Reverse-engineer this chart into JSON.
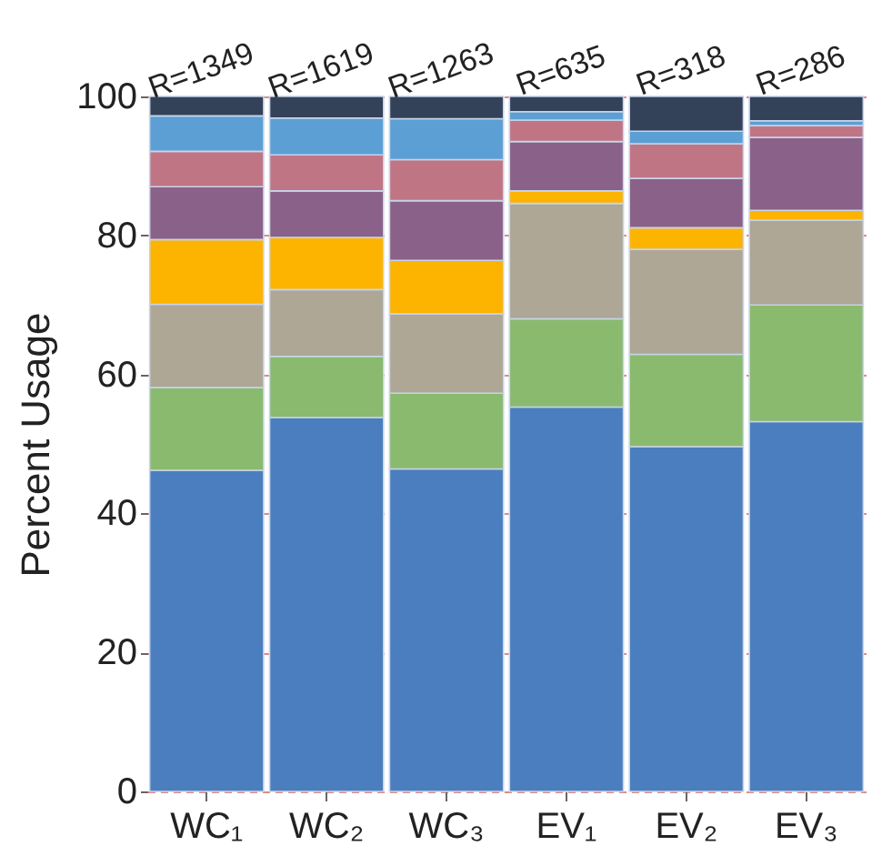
{
  "chart_data": {
    "type": "bar",
    "stacked": true,
    "ylabel": "Percent Usage",
    "categories": [
      "WC₁",
      "WC₂",
      "WC₃",
      "EV₁",
      "EV₂",
      "EV₃"
    ],
    "series": [
      {
        "color": "#4a7ebf",
        "values": [
          46.2,
          53.8,
          46.4,
          55.3,
          49.6,
          53.2
        ]
      },
      {
        "color": "#8aba6e",
        "values": [
          11.9,
          8.8,
          10.9,
          12.7,
          13.3,
          16.8
        ]
      },
      {
        "color": "#aea796",
        "values": [
          12.0,
          9.6,
          11.4,
          16.6,
          15.1,
          12.2
        ]
      },
      {
        "color": "#fdb400",
        "values": [
          9.3,
          7.5,
          7.7,
          1.8,
          3.1,
          1.4
        ]
      },
      {
        "color": "#8a6188",
        "values": [
          7.6,
          6.7,
          8.6,
          7.1,
          7.1,
          10.5
        ]
      },
      {
        "color": "#c07585",
        "values": [
          5.1,
          5.2,
          5.9,
          3.1,
          5.0,
          1.7
        ]
      },
      {
        "color": "#5b9fd4",
        "values": [
          5.1,
          5.3,
          5.9,
          1.2,
          1.8,
          0.7
        ]
      },
      {
        "color": "#344259",
        "values": [
          2.8,
          3.1,
          3.2,
          2.2,
          5.0,
          3.5
        ]
      }
    ],
    "annotations": [
      {
        "text": "R=1349",
        "x": "WC₁",
        "y": 100
      },
      {
        "text": "R=1619",
        "x": "WC₂",
        "y": 100
      },
      {
        "text": "R=1263",
        "x": "WC₃",
        "y": 100
      },
      {
        "text": "R=635",
        "x": "EV₁",
        "y": 100
      },
      {
        "text": "R=318",
        "x": "EV₂",
        "y": 100
      },
      {
        "text": "R=286",
        "x": "EV₃",
        "y": 100
      }
    ],
    "ylim": [
      0,
      100
    ],
    "yticks": [
      0,
      20,
      40,
      60,
      80,
      100
    ],
    "grid": "y",
    "legend": false
  }
}
